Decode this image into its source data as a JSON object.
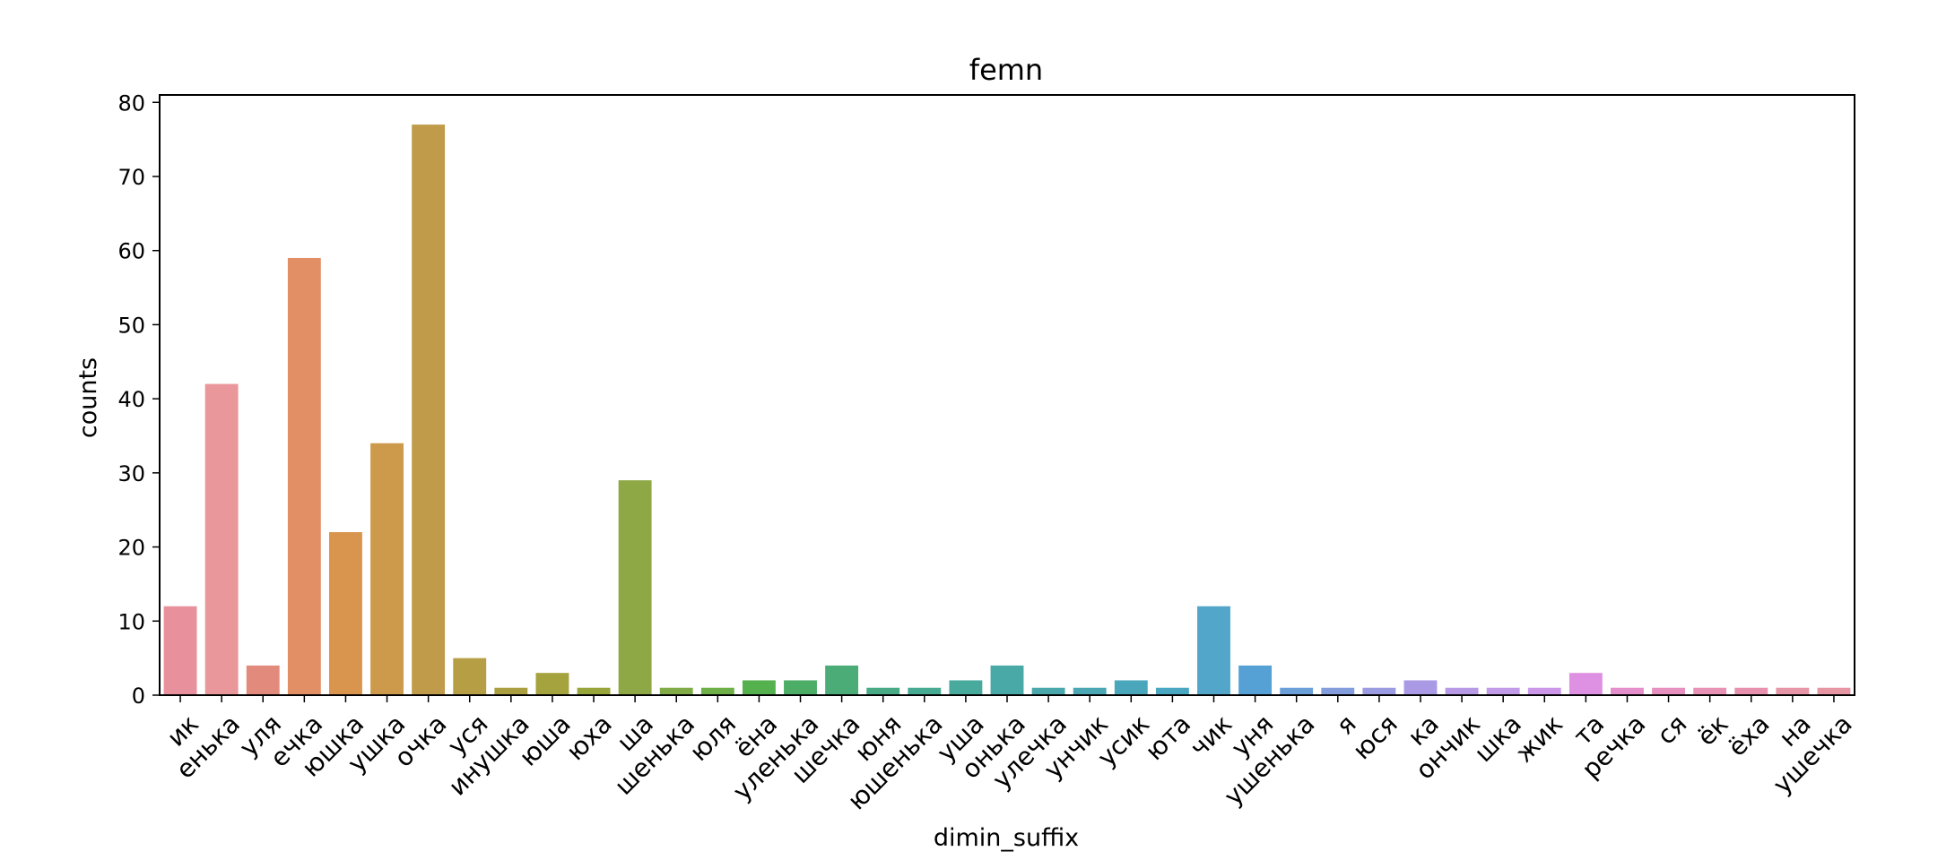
{
  "chart_data": {
    "type": "bar",
    "title": "femn",
    "xlabel": "dimin_suffix",
    "ylabel": "counts",
    "ylim": [
      0,
      81
    ],
    "yticks": [
      0,
      10,
      20,
      30,
      40,
      50,
      60,
      70,
      80
    ],
    "grid": false,
    "categories": [
      "ик",
      "енька",
      "уля",
      "ечка",
      "юшка",
      "ушка",
      "очка",
      "уся",
      "инушка",
      "юша",
      "юха",
      "ша",
      "шенька",
      "юля",
      "ёна",
      "уленька",
      "шечка",
      "юня",
      "юшенька",
      "уша",
      "онька",
      "улечка",
      "унчик",
      "усик",
      "юта",
      "чик",
      "уня",
      "ушенька",
      "я",
      "юся",
      "ка",
      "ончик",
      "шка",
      "жик",
      "та",
      "речка",
      "ся",
      "ёк",
      "ёха",
      "на",
      "ушечка"
    ],
    "values": [
      12,
      42,
      4,
      59,
      22,
      34,
      77,
      5,
      1,
      3,
      1,
      29,
      1,
      1,
      2,
      2,
      4,
      1,
      1,
      2,
      4,
      1,
      1,
      2,
      1,
      12,
      4,
      1,
      1,
      1,
      2,
      1,
      1,
      1,
      3,
      1,
      1,
      1,
      1,
      1,
      1
    ],
    "colors": [
      "#e8919c",
      "#e9979a",
      "#e28b7d",
      "#e38f66",
      "#d9944e",
      "#cd9a4c",
      "#c09b4a",
      "#b69e45",
      "#aa9e40",
      "#a5a33d",
      "#98a53b",
      "#8ea845",
      "#80ab47",
      "#6eaf48",
      "#55b04e",
      "#4bad66",
      "#4bac78",
      "#48ab86",
      "#47aa92",
      "#48aa9c",
      "#48a9a6",
      "#4aa8ad",
      "#4aa7b3",
      "#4aa6ba",
      "#4aa7c2",
      "#52a6c9",
      "#55a1d6",
      "#6a9fd9",
      "#839ddd",
      "#9a9be0",
      "#aa9ae6",
      "#b899e5",
      "#c29be8",
      "#cc97e9",
      "#de91e2",
      "#e48ecc",
      "#e690c0",
      "#e893b6",
      "#e791ae",
      "#e696a6",
      "#e596a2"
    ]
  }
}
